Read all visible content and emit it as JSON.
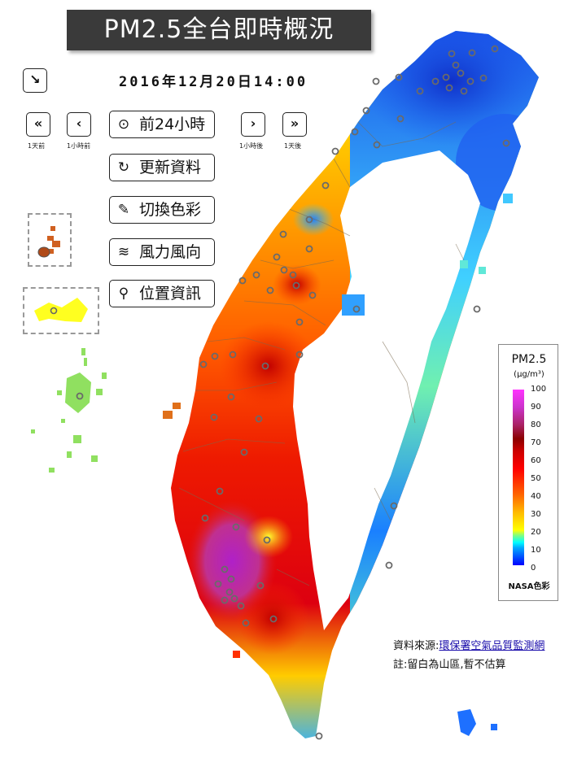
{
  "title": "PM2.5全台即時概況",
  "datetime": "2016年12月20日14:00",
  "nav": {
    "expand_icon": "arrow-down-right-icon",
    "prev_day": {
      "glyph": "«",
      "caption": "1天前"
    },
    "prev_hour": {
      "glyph": "‹",
      "caption": "1小時前"
    },
    "next_hour": {
      "glyph": "›",
      "caption": "1小時後"
    },
    "next_day": {
      "glyph": "»",
      "caption": "1天後"
    }
  },
  "buttons": [
    {
      "icon": "play-circle-icon",
      "glyph": "⊙",
      "label": "前24小時"
    },
    {
      "icon": "refresh-icon",
      "glyph": "↻",
      "label": "更新資料"
    },
    {
      "icon": "paint-brush-icon",
      "glyph": "✎",
      "label": "切換色彩"
    },
    {
      "icon": "wind-icon",
      "glyph": "≋",
      "label": "風力風向"
    },
    {
      "icon": "map-marker-icon",
      "glyph": "⚲",
      "label": "位置資訊"
    }
  ],
  "legend": {
    "title": "PM2.5",
    "unit": "(μg/m³)",
    "ticks": [
      "100",
      "90",
      "80",
      "70",
      "60",
      "50",
      "40",
      "30",
      "20",
      "10",
      "0"
    ],
    "footer": "NASA色彩"
  },
  "source": {
    "label": "資料來源:",
    "link": "環保署空氣品質監測網"
  },
  "note": "註:留白為山區,暫不估算",
  "colors": {
    "north_east": "#1a4fe0",
    "west_central": "#ff8a00",
    "south_west": "#e0001a",
    "kaohsiung_peak": "#c020c0",
    "islands": "#8fe060"
  }
}
